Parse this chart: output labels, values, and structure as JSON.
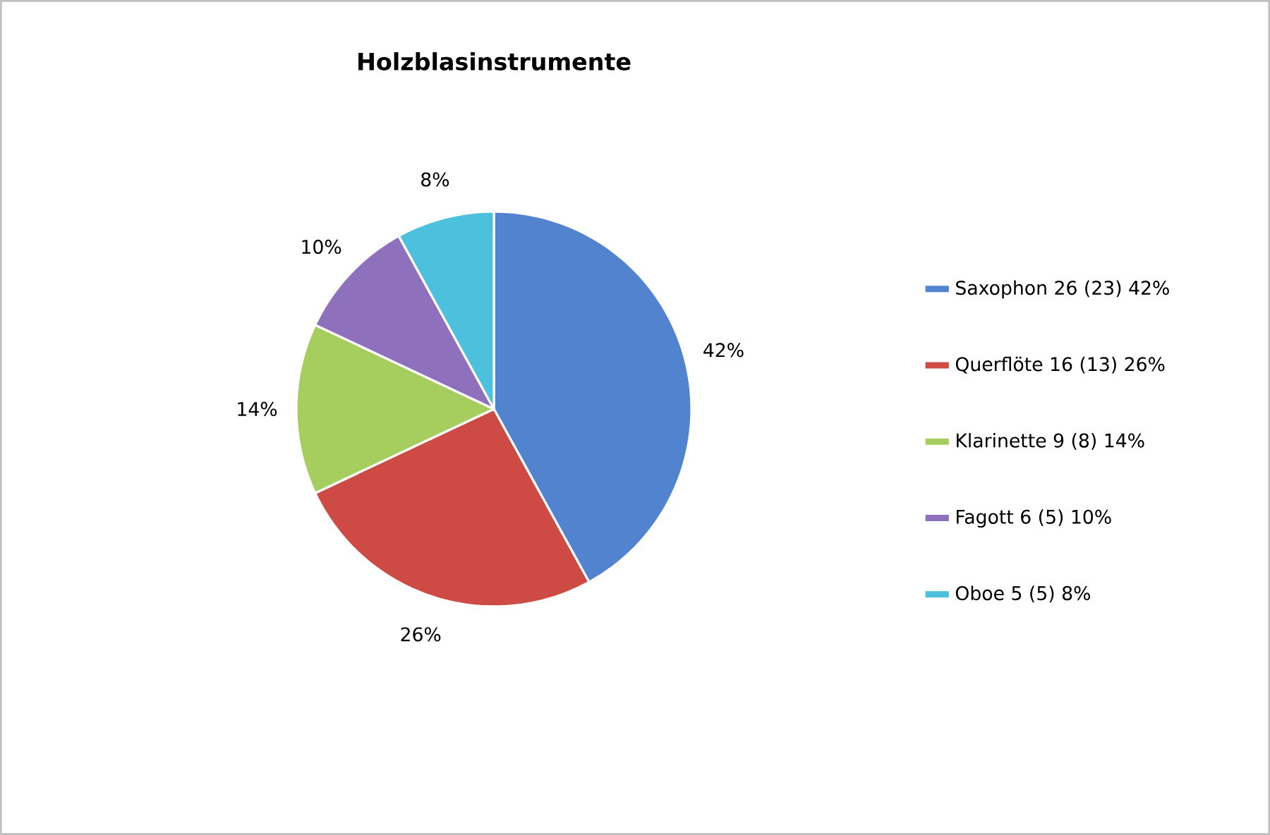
{
  "chart_data": {
    "type": "pie",
    "title": "Holzblasinstrumente",
    "categories": [
      "Saxophon 26 (23) 42%",
      "Querflöte 16 (13) 26%",
      "Klarinette 9 (8) 14%",
      "Fagott 6 (5) 10%",
      "Oboe 5 (5) 8%"
    ],
    "values": [
      42,
      26,
      14,
      10,
      8
    ],
    "value_labels": [
      "42%",
      "26%",
      "14%",
      "10%",
      "8%"
    ],
    "colors": [
      "#5283cf",
      "#cd4a45",
      "#a6ce5e",
      "#8f70bc",
      "#4cc0dc"
    ],
    "legend": "right"
  }
}
